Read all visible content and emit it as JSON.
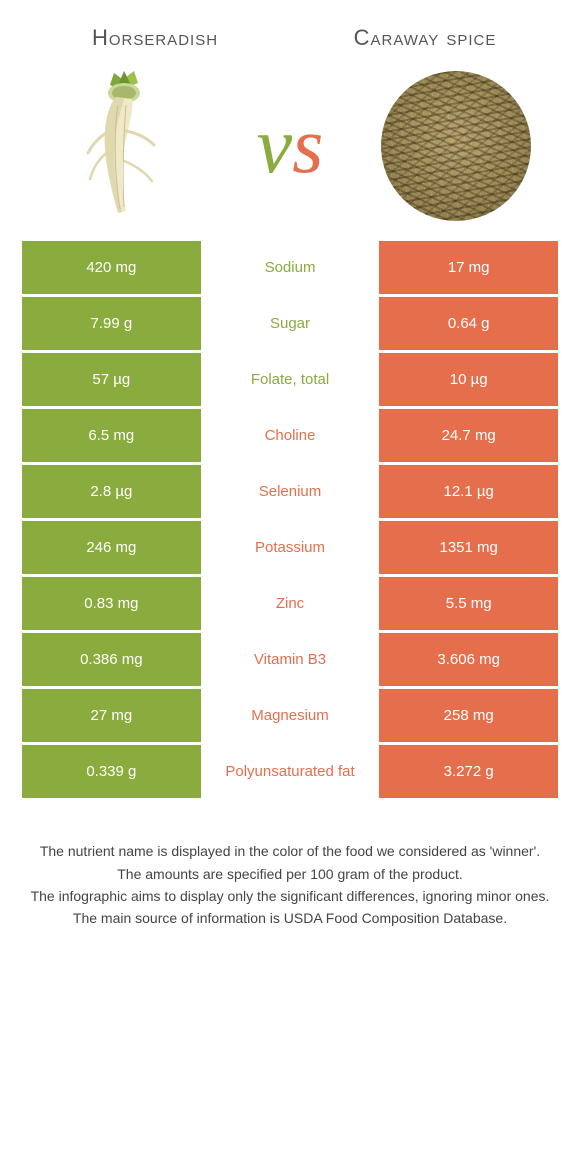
{
  "header": {
    "left_title": "Horseradish",
    "right_title": "Caraway spice",
    "vs_v": "v",
    "vs_s": "s"
  },
  "colors": {
    "left": "#8aab3e",
    "right": "#e56f4d",
    "background": "#ffffff",
    "text": "#333333"
  },
  "rows": [
    {
      "nutrient": "Sodium",
      "left": "420 mg",
      "right": "17 mg",
      "winner": "left"
    },
    {
      "nutrient": "Sugar",
      "left": "7.99 g",
      "right": "0.64 g",
      "winner": "left"
    },
    {
      "nutrient": "Folate, total",
      "left": "57 µg",
      "right": "10 µg",
      "winner": "left"
    },
    {
      "nutrient": "Choline",
      "left": "6.5 mg",
      "right": "24.7 mg",
      "winner": "right"
    },
    {
      "nutrient": "Selenium",
      "left": "2.8 µg",
      "right": "12.1 µg",
      "winner": "right"
    },
    {
      "nutrient": "Potassium",
      "left": "246 mg",
      "right": "1351 mg",
      "winner": "right"
    },
    {
      "nutrient": "Zinc",
      "left": "0.83 mg",
      "right": "5.5 mg",
      "winner": "right"
    },
    {
      "nutrient": "Vitamin B3",
      "left": "0.386 mg",
      "right": "3.606 mg",
      "winner": "right"
    },
    {
      "nutrient": "Magnesium",
      "left": "27 mg",
      "right": "258 mg",
      "winner": "right"
    },
    {
      "nutrient": "Polyunsaturated fat",
      "left": "0.339 g",
      "right": "3.272 g",
      "winner": "right"
    }
  ],
  "footer": {
    "line1": "The nutrient name is displayed in the color of the food we considered as 'winner'.",
    "line2": "The amounts are specified per 100 gram of the product.",
    "line3": "The infographic aims to display only the significant differences, ignoring minor ones.",
    "line4": "The main source of information is USDA Food Composition Database."
  }
}
